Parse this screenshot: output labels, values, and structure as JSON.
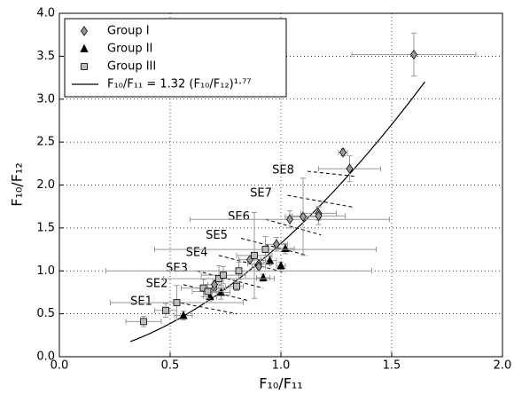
{
  "chart_data": {
    "type": "scatter",
    "xlabel": "F₁₀/F₁₁",
    "ylabel": "F₁₀/F₁₂",
    "xlim": [
      0,
      2.0
    ],
    "ylim": [
      0,
      4.0
    ],
    "xticks": [
      {
        "value": 0,
        "label": "0.0"
      },
      {
        "value": 0.5,
        "label": "0.5"
      },
      {
        "value": 1,
        "label": "1.0"
      },
      {
        "value": 1.5,
        "label": "1.5"
      },
      {
        "value": 2,
        "label": "2.0"
      }
    ],
    "yticks": [
      {
        "value": 0,
        "label": "0.0"
      },
      {
        "value": 0.5,
        "label": "0.5"
      },
      {
        "value": 1,
        "label": "1.0"
      },
      {
        "value": 1.5,
        "label": "1.5"
      },
      {
        "value": 2,
        "label": "2.0"
      },
      {
        "value": 2.5,
        "label": "2.5"
      },
      {
        "value": 3,
        "label": "3.0"
      },
      {
        "value": 3.5,
        "label": "3.5"
      },
      {
        "value": 4,
        "label": "4.0"
      }
    ],
    "grid": true,
    "legend": "upper left",
    "series": [
      {
        "name": "Group I",
        "marker": "diamond",
        "color": "#9a9a9a",
        "x": [
          1.6,
          1.28,
          1.31,
          1.17,
          1.17,
          1.1,
          1.04,
          0.98,
          0.9,
          0.9,
          0.86,
          0.7,
          0.7
        ],
        "values": [
          3.52,
          2.38,
          2.19,
          1.67,
          1.64,
          1.63,
          1.6,
          1.31,
          1.08,
          1.05,
          1.13,
          0.8,
          0.84
        ],
        "xerr": [
          0.28,
          0.02,
          0.14,
          0.08,
          0.12,
          0.08,
          0.45,
          0.05,
          0.05,
          0.03,
          0.05,
          0.04,
          0.03
        ],
        "yerr": [
          0.25,
          0.04,
          0.15,
          0.08,
          0.1,
          0.45,
          0.1,
          0.08,
          0.05,
          0.05,
          0.05,
          0.05,
          0.05
        ]
      },
      {
        "name": "Group II",
        "marker": "triangle",
        "color": "#000000",
        "x": [
          0.56,
          0.68,
          0.73,
          0.92,
          1.0,
          1.02,
          0.95
        ],
        "values": [
          0.48,
          0.7,
          0.75,
          0.92,
          1.06,
          1.26,
          1.12
        ],
        "xerr": [
          0.04,
          0.03,
          0.04,
          0.03,
          0.02,
          0.04,
          0.03
        ],
        "yerr": [
          0.05,
          0.05,
          0.08,
          0.04,
          0.04,
          0.06,
          0.05
        ]
      },
      {
        "name": "Group III",
        "marker": "square",
        "color": "#bdbdbd",
        "x": [
          0.38,
          0.48,
          0.53,
          0.65,
          0.67,
          0.72,
          0.74,
          0.8,
          0.81,
          0.88,
          0.93
        ],
        "values": [
          0.41,
          0.54,
          0.63,
          0.8,
          0.76,
          0.91,
          0.95,
          0.82,
          1.0,
          1.18,
          1.25
        ],
        "xerr": [
          0.08,
          0.05,
          0.3,
          0.1,
          0.07,
          0.25,
          0.1,
          0.03,
          0.6,
          0.08,
          0.5
        ],
        "yerr": [
          0.06,
          0.08,
          0.2,
          0.1,
          0.08,
          0.15,
          0.1,
          0.05,
          0.1,
          0.5,
          0.15
        ]
      }
    ],
    "fit": {
      "label": "F₁₀/F₁₁ = 1.32 (F₁₀/F₁₂)¹·⁷⁷",
      "coefficient": 1.32,
      "exponent": 1.77,
      "xrange": [
        0.32,
        1.65
      ],
      "color": "#000000"
    },
    "annotations": [
      {
        "text": "SE1",
        "x": [
          0.52,
          0.8
        ],
        "y": [
          0.64,
          0.5
        ],
        "label_x": 0.37,
        "label_y": 0.64
      },
      {
        "text": "SE2",
        "x": [
          0.56,
          0.86
        ],
        "y": [
          0.84,
          0.65
        ],
        "label_x": 0.44,
        "label_y": 0.85
      },
      {
        "text": "SE3",
        "x": [
          0.62,
          0.92
        ],
        "y": [
          1.0,
          0.8
        ],
        "label_x": 0.53,
        "label_y": 1.03
      },
      {
        "text": "SE4",
        "x": [
          0.72,
          1.02
        ],
        "y": [
          1.18,
          0.98
        ],
        "label_x": 0.62,
        "label_y": 1.21
      },
      {
        "text": "SE5",
        "x": [
          0.82,
          1.12
        ],
        "y": [
          1.38,
          1.18
        ],
        "label_x": 0.71,
        "label_y": 1.41
      },
      {
        "text": "SE6",
        "x": [
          0.93,
          1.18
        ],
        "y": [
          1.6,
          1.42
        ],
        "label_x": 0.81,
        "label_y": 1.63
      },
      {
        "text": "SE7",
        "x": [
          1.03,
          1.33
        ],
        "y": [
          1.88,
          1.74
        ],
        "label_x": 0.91,
        "label_y": 1.9
      },
      {
        "text": "SE8",
        "x": [
          1.12,
          1.34
        ],
        "y": [
          2.16,
          2.1
        ],
        "label_x": 1.01,
        "label_y": 2.17
      }
    ]
  }
}
